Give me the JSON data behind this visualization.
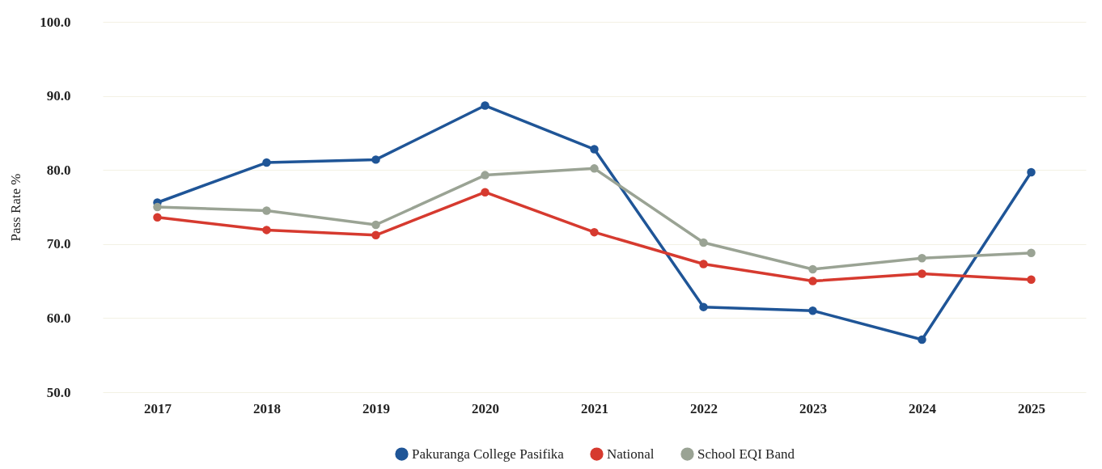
{
  "chart_data": {
    "type": "line",
    "ylabel": "Pass Rate %",
    "categories": [
      "2017",
      "2018",
      "2019",
      "2020",
      "2021",
      "2022",
      "2023",
      "2024",
      "2025"
    ],
    "series": [
      {
        "name": "Pakuranga College Pasifika",
        "color": "#1f5597",
        "values": [
          75.6,
          81.0,
          81.4,
          88.7,
          82.8,
          61.5,
          61.0,
          57.1,
          79.7
        ]
      },
      {
        "name": "National",
        "color": "#d63a2f",
        "values": [
          73.6,
          71.9,
          71.2,
          77.0,
          71.6,
          67.3,
          65.0,
          66.0,
          65.2
        ]
      },
      {
        "name": "School EQI Band",
        "color": "#9aa394",
        "values": [
          75.0,
          74.5,
          72.6,
          79.3,
          80.2,
          70.2,
          66.6,
          68.1,
          68.8
        ]
      }
    ],
    "ylim": [
      50,
      100
    ],
    "yticks": [
      {
        "value": 50,
        "label": "50.0"
      },
      {
        "value": 60,
        "label": "60.0"
      },
      {
        "value": 70,
        "label": "70.0"
      },
      {
        "value": 80,
        "label": "80.0"
      },
      {
        "value": 90,
        "label": "90.0"
      },
      {
        "value": 100,
        "label": "100.0"
      }
    ],
    "grid": "y",
    "legend": "bottom",
    "marker": "circle",
    "line_style": "solid"
  }
}
